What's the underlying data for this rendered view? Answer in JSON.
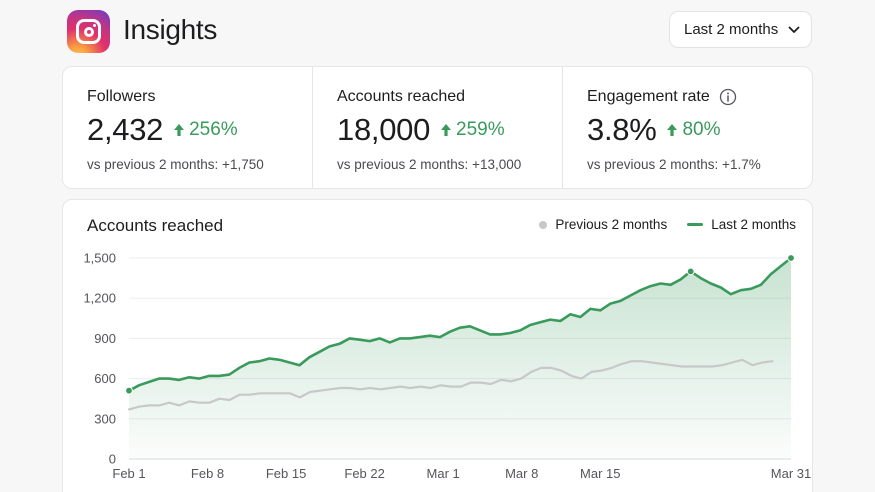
{
  "app": {
    "title": "Insights",
    "range_selector": "Last 2 months"
  },
  "stats": [
    {
      "label": "Followers",
      "value": "2,432",
      "change": "256%",
      "sub": "vs previous 2 months: +1,750"
    },
    {
      "label": "Accounts reached",
      "value": "18,000",
      "change": "259%",
      "sub": "vs previous 2 months: +13,000"
    },
    {
      "label": "Engagement rate",
      "value": "3.8%",
      "change": "80%",
      "sub": "vs previous 2 months: +1.7%"
    }
  ],
  "colors": {
    "accent": "#3a9a5c",
    "previous": "#c8c8cb"
  },
  "chart": {
    "title": "Accounts reached",
    "legend": {
      "previous": "Previous 2 months",
      "current": "Last 2 months"
    }
  },
  "chart_data": {
    "type": "area",
    "title": "Accounts reached",
    "x_tick_labels": [
      "Feb 1",
      "Feb 8",
      "Feb 15",
      "Feb 22",
      "Mar 1",
      "Mar 8",
      "Mar 15",
      "Mar 31"
    ],
    "y_tick_labels": [
      "0",
      "300",
      "600",
      "900",
      "1,200",
      "1,500"
    ],
    "ylim": [
      0,
      1500
    ],
    "legend_position": "top-right",
    "grid": true,
    "series": [
      {
        "name": "Last 2 months",
        "values": [
          510,
          550,
          575,
          600,
          600,
          590,
          610,
          600,
          620,
          620,
          630,
          680,
          720,
          730,
          750,
          740,
          720,
          700,
          760,
          800,
          840,
          860,
          900,
          890,
          880,
          900,
          870,
          900,
          900,
          910,
          920,
          910,
          950,
          980,
          990,
          960,
          930,
          930,
          940,
          960,
          1000,
          1020,
          1040,
          1030,
          1080,
          1060,
          1120,
          1110,
          1160,
          1180,
          1220,
          1260,
          1290,
          1310,
          1300,
          1340,
          1400,
          1350,
          1310,
          1280,
          1230,
          1260,
          1270,
          1300,
          1380,
          1440,
          1500
        ]
      },
      {
        "name": "Previous 2 months",
        "values": [
          370,
          390,
          400,
          400,
          420,
          400,
          430,
          420,
          420,
          450,
          440,
          480,
          480,
          490,
          490,
          490,
          490,
          460,
          500,
          510,
          520,
          530,
          530,
          520,
          530,
          520,
          530,
          540,
          530,
          540,
          530,
          550,
          540,
          540,
          570,
          570,
          560,
          590,
          580,
          600,
          650,
          680,
          680,
          660,
          620,
          600,
          650,
          660,
          680,
          710,
          730,
          730,
          720,
          710,
          700,
          690,
          690,
          690,
          690,
          700,
          720,
          740,
          700,
          720,
          730
        ]
      }
    ]
  }
}
